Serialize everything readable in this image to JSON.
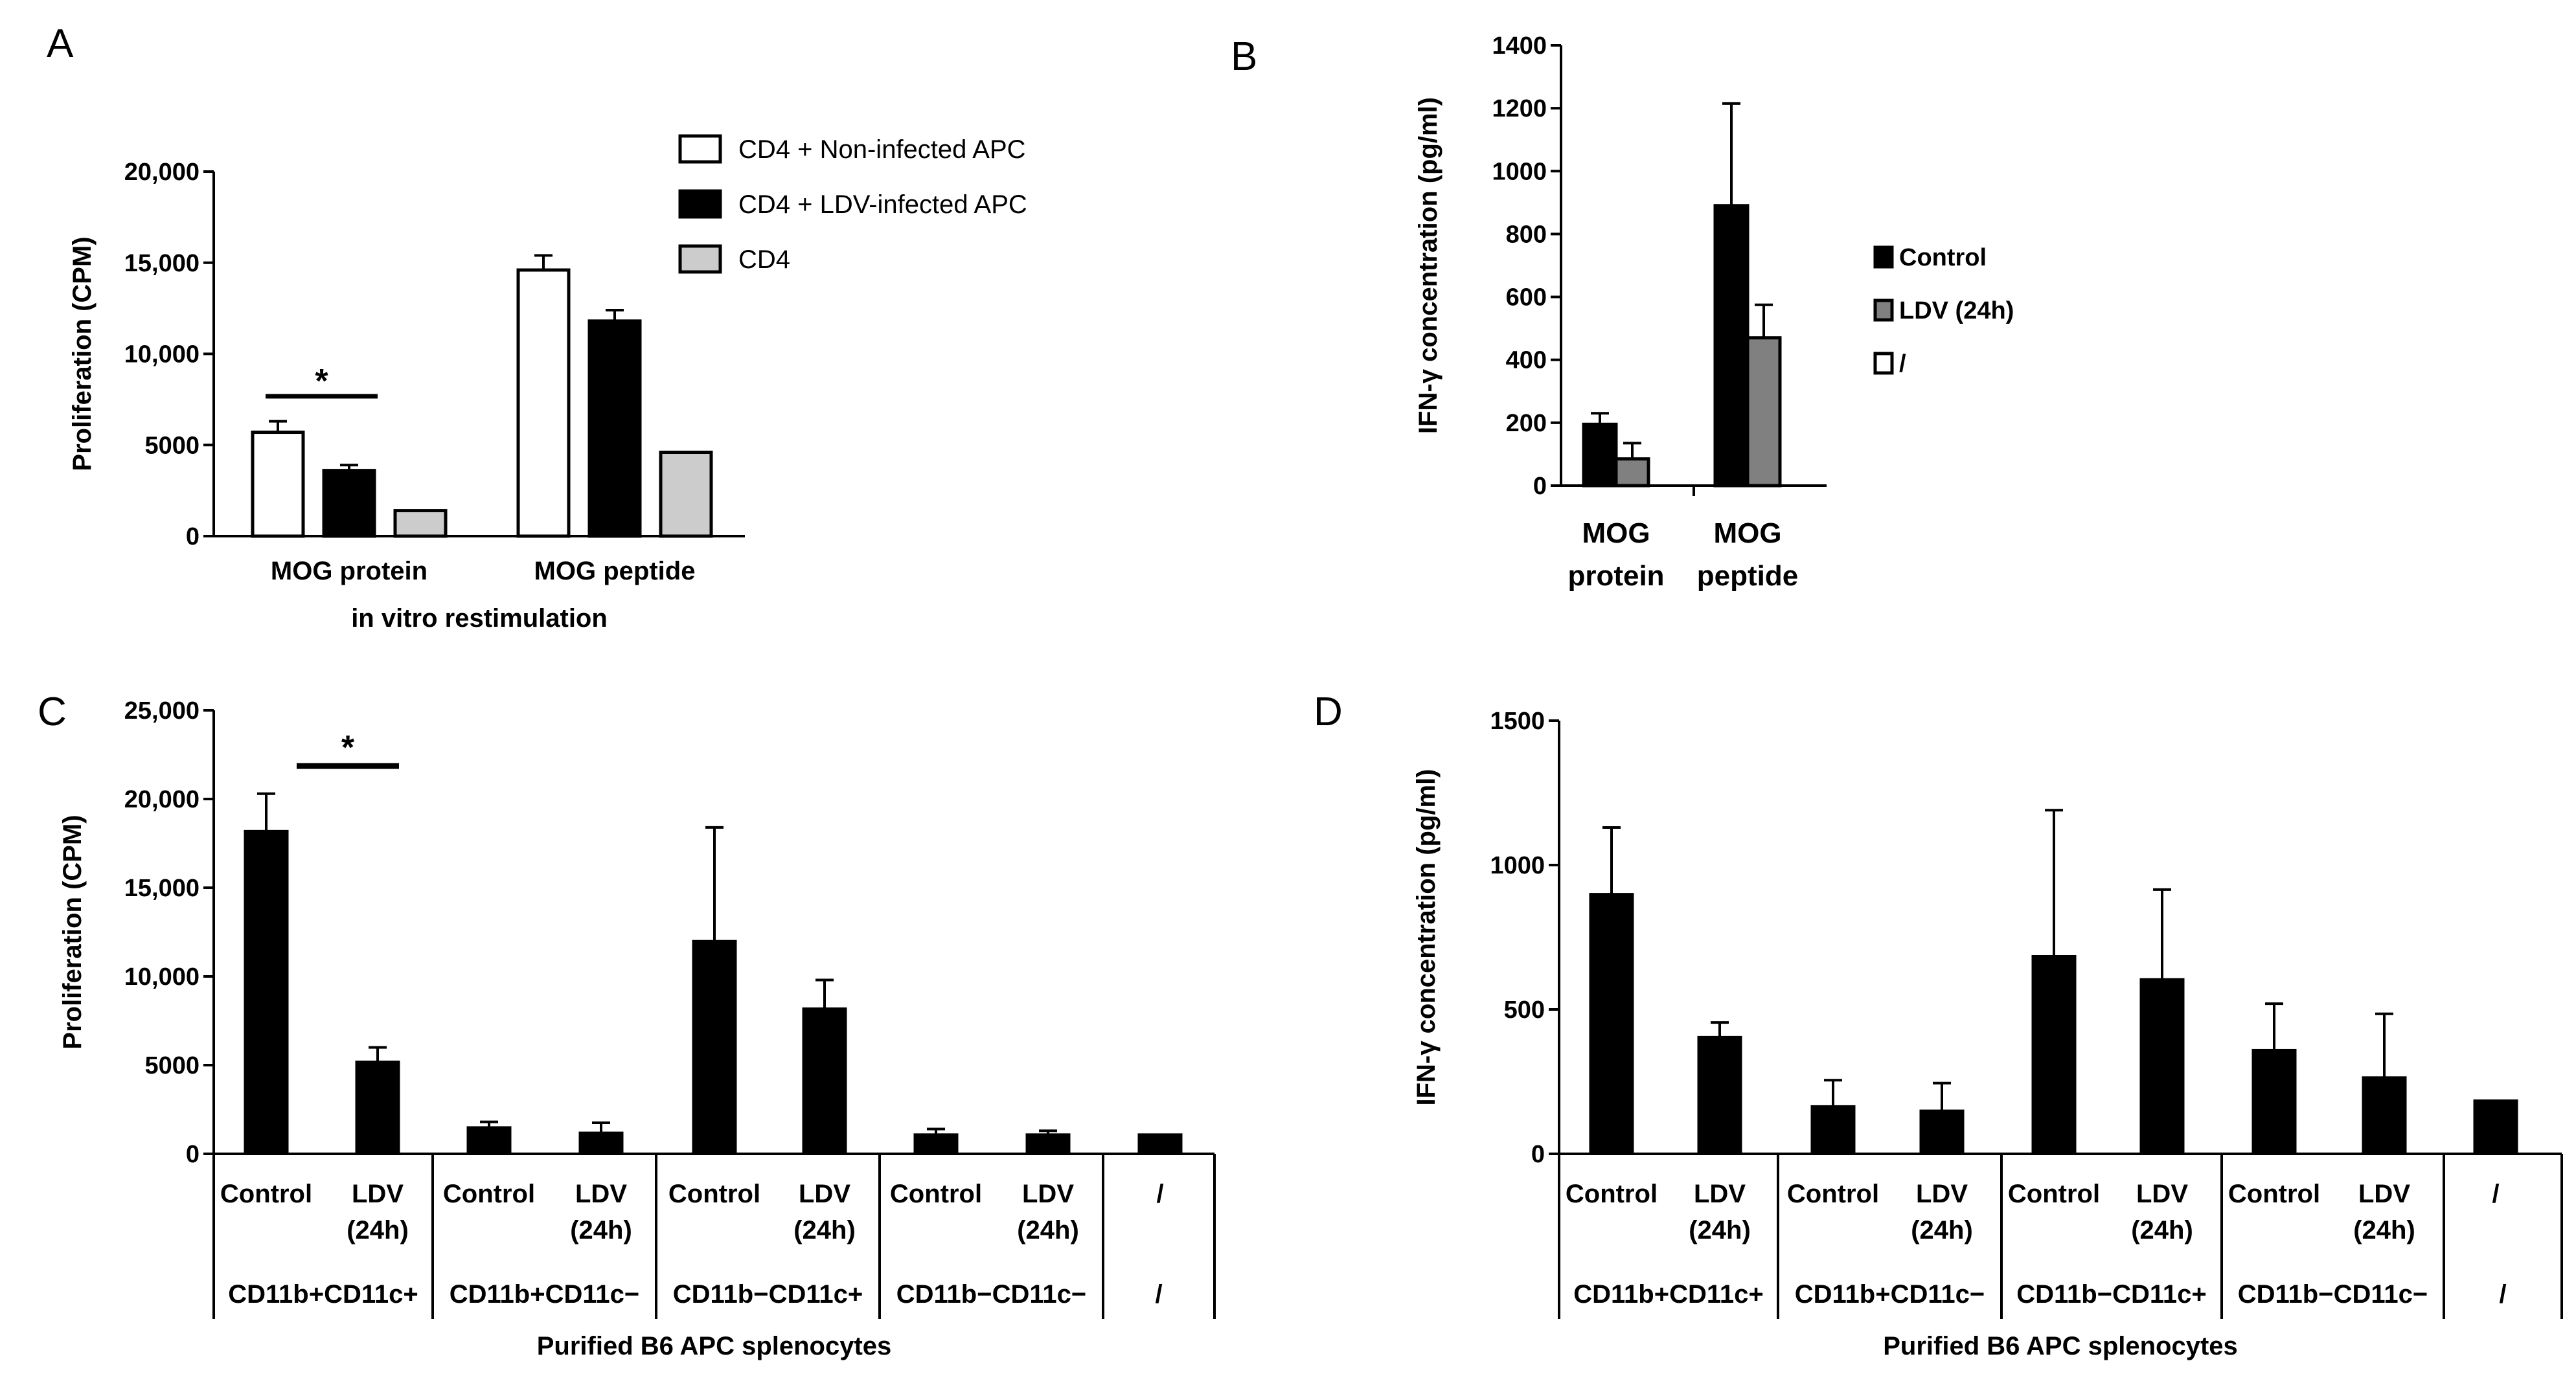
{
  "chart_data": [
    {
      "panel": "A",
      "type": "bar",
      "ylabel": "Proliferation (CPM)",
      "xlabel": "in vitro restimulation",
      "ylim": [
        0,
        20000
      ],
      "yticks": [
        0,
        5000,
        10000,
        15000,
        20000
      ],
      "ytick_labels": [
        "0",
        "5000",
        "10,000",
        "15,000",
        "20,000"
      ],
      "categories": [
        "MOG protein",
        "MOG peptide"
      ],
      "series": [
        {
          "name": "CD4 + Non-infected APC",
          "color": "#ffffff",
          "values": [
            5700,
            14600
          ],
          "errors": [
            600,
            800
          ]
        },
        {
          "name": "CD4 + LDV-infected APC",
          "color": "#000000",
          "values": [
            3600,
            11800
          ],
          "errors": [
            300,
            600
          ]
        },
        {
          "name": "CD4",
          "color": "#cccccc",
          "values": [
            1400,
            4600
          ],
          "errors": [
            0,
            0
          ]
        }
      ],
      "significance": [
        {
          "label": "*",
          "category": "MOG protein",
          "from_series": 0,
          "to_series": 1
        }
      ],
      "legend": "top-right"
    },
    {
      "panel": "B",
      "type": "bar",
      "ylabel": "IFN-γ concentration (pg/ml)",
      "ylim": [
        0,
        1400
      ],
      "yticks": [
        0,
        200,
        400,
        600,
        800,
        1000,
        1200,
        1400
      ],
      "ytick_labels": [
        "0",
        "200",
        "400",
        "600",
        "800",
        "1000",
        "1200",
        "1400"
      ],
      "categories": [
        [
          "MOG",
          "protein"
        ],
        [
          "MOG",
          "peptide"
        ]
      ],
      "series": [
        {
          "name": "Control",
          "color": "#000000",
          "values": [
            195,
            890
          ],
          "errors": [
            35,
            325
          ]
        },
        {
          "name": "LDV (24h)",
          "color": "#808080",
          "values": [
            85,
            470
          ],
          "errors": [
            50,
            105
          ]
        },
        {
          "name": "/",
          "color": "#ffffff",
          "values": [
            0,
            0
          ],
          "errors": [
            0,
            0
          ]
        }
      ],
      "legend": "right"
    },
    {
      "panel": "C",
      "type": "bar",
      "ylabel": "Proliferation (CPM)",
      "xlabel": "Purified B6 APC splenocytes",
      "ylim": [
        0,
        25000
      ],
      "yticks": [
        0,
        5000,
        10000,
        15000,
        20000,
        25000
      ],
      "ytick_labels": [
        "0",
        "5000",
        "10,000",
        "15,000",
        "20,000",
        "25,000"
      ],
      "bars": [
        {
          "label": [
            "Control"
          ],
          "value": 18200,
          "error": 2100
        },
        {
          "label": [
            "LDV",
            "(24h)"
          ],
          "value": 5200,
          "error": 800
        },
        {
          "label": [
            "Control"
          ],
          "value": 1500,
          "error": 300
        },
        {
          "label": [
            "LDV",
            "(24h)"
          ],
          "value": 1200,
          "error": 550
        },
        {
          "label": [
            "Control"
          ],
          "value": 12000,
          "error": 6400
        },
        {
          "label": [
            "LDV",
            "(24h)"
          ],
          "value": 8200,
          "error": 1600
        },
        {
          "label": [
            "Control"
          ],
          "value": 1100,
          "error": 300
        },
        {
          "label": [
            "LDV",
            "(24h)"
          ],
          "value": 1100,
          "error": 200
        },
        {
          "label": [
            "/"
          ],
          "value": 1100,
          "error": 0
        }
      ],
      "groups": [
        "CD11b+CD11c+",
        "CD11b+CD11c−",
        "CD11b−CD11c+",
        "CD11b−CD11c−",
        "/"
      ],
      "significance": [
        {
          "label": "*",
          "from_bar": 0,
          "to_bar": 1
        }
      ]
    },
    {
      "panel": "D",
      "type": "bar",
      "ylabel": "IFN-γ concentration (pg/ml)",
      "xlabel": "Purified B6 APC splenocytes",
      "ylim": [
        0,
        1500
      ],
      "yticks": [
        0,
        500,
        1000,
        1500
      ],
      "ytick_labels": [
        "0",
        "500",
        "1000",
        "1500"
      ],
      "bars": [
        {
          "label": [
            "Control"
          ],
          "value": 900,
          "error": 230
        },
        {
          "label": [
            "LDV",
            "(24h)"
          ],
          "value": 405,
          "error": 50
        },
        {
          "label": [
            "Control"
          ],
          "value": 165,
          "error": 90
        },
        {
          "label": [
            "LDV",
            "(24h)"
          ],
          "value": 150,
          "error": 95
        },
        {
          "label": [
            "Control"
          ],
          "value": 685,
          "error": 505
        },
        {
          "label": [
            "LDV",
            "(24h)"
          ],
          "value": 605,
          "error": 310
        },
        {
          "label": [
            "Control"
          ],
          "value": 360,
          "error": 160
        },
        {
          "label": [
            "LDV",
            "(24h)"
          ],
          "value": 265,
          "error": 220
        },
        {
          "label": [
            "/"
          ],
          "value": 185,
          "error": 0
        }
      ],
      "groups": [
        "CD11b+CD11c+",
        "CD11b+CD11c−",
        "CD11b−CD11c+",
        "CD11b−CD11c−",
        "/"
      ]
    }
  ]
}
